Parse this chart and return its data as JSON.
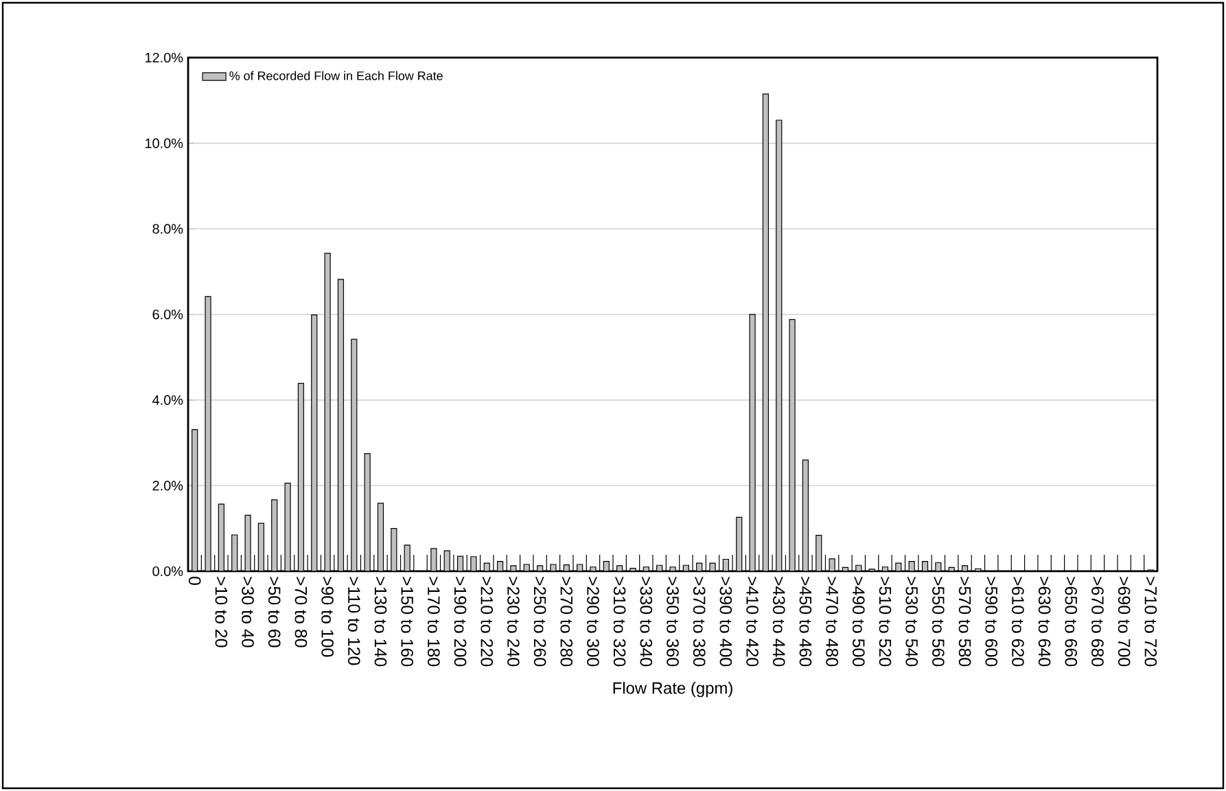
{
  "chart_data": {
    "type": "bar",
    "xlabel": "Flow Rate (gpm)",
    "categories": [
      "0",
      null,
      ">10 to 20",
      null,
      ">30 to 40",
      null,
      ">50 to 60",
      null,
      ">70 to 80",
      null,
      ">90 to 100",
      null,
      ">110 to 120",
      null,
      ">130 to 140",
      null,
      ">150 to 160",
      null,
      ">170 to 180",
      null,
      ">190 to 200",
      null,
      ">210 to 220",
      null,
      ">230 to 240",
      null,
      ">250 to 260",
      null,
      ">270 to 280",
      null,
      ">290 to 300",
      null,
      ">310 to 320",
      null,
      ">330 to 340",
      null,
      ">350 to 360",
      null,
      ">370 to 380",
      null,
      ">390 to 400",
      null,
      ">410 to 420",
      null,
      ">430 to 440",
      null,
      ">450 to 460",
      null,
      ">470 to 480",
      null,
      ">490 to 500",
      null,
      ">510 to 520",
      null,
      ">530 to 540",
      null,
      ">550 to 560",
      null,
      ">570 to 580",
      null,
      ">590 to 600",
      null,
      ">610 to 620",
      null,
      ">630 to 640",
      null,
      ">650 to 660",
      null,
      ">670 to 680",
      null,
      ">690 to 700",
      null,
      ">710 to 720"
    ],
    "series": [
      {
        "name": "% of Recorded Flow in Each Flow Rate",
        "color": "#c0c0c0",
        "values": [
          3.31,
          6.42,
          1.57,
          0.85,
          1.31,
          1.12,
          1.67,
          2.06,
          4.39,
          5.99,
          7.43,
          6.82,
          5.42,
          2.75,
          1.59,
          1.0,
          0.61,
          null,
          0.53,
          0.48,
          0.35,
          0.34,
          0.19,
          0.23,
          0.13,
          0.16,
          0.13,
          0.16,
          0.15,
          0.16,
          0.1,
          0.23,
          0.13,
          0.07,
          0.1,
          0.14,
          0.1,
          0.14,
          0.19,
          0.19,
          0.28,
          1.26,
          6.0,
          11.15,
          10.54,
          5.88,
          2.6,
          0.84,
          0.29,
          0.09,
          0.14,
          0.05,
          0.1,
          0.19,
          0.23,
          0.23,
          0.2,
          0.09,
          0.13,
          0.06,
          null,
          null,
          null,
          null,
          null,
          null,
          null,
          null,
          null,
          null,
          null,
          null,
          0.03
        ]
      }
    ],
    "ylim": [
      0,
      12
    ],
    "yticks": [
      {
        "value": 0,
        "label": "0.0%"
      },
      {
        "value": 2,
        "label": "2.0%"
      },
      {
        "value": 4,
        "label": "4.0%"
      },
      {
        "value": 6,
        "label": "6.0%"
      },
      {
        "value": 8,
        "label": "8.0%"
      },
      {
        "value": 10,
        "label": "10.0%"
      },
      {
        "value": 12,
        "label": "12.0%"
      }
    ],
    "grid": "y",
    "legend": "top left"
  }
}
